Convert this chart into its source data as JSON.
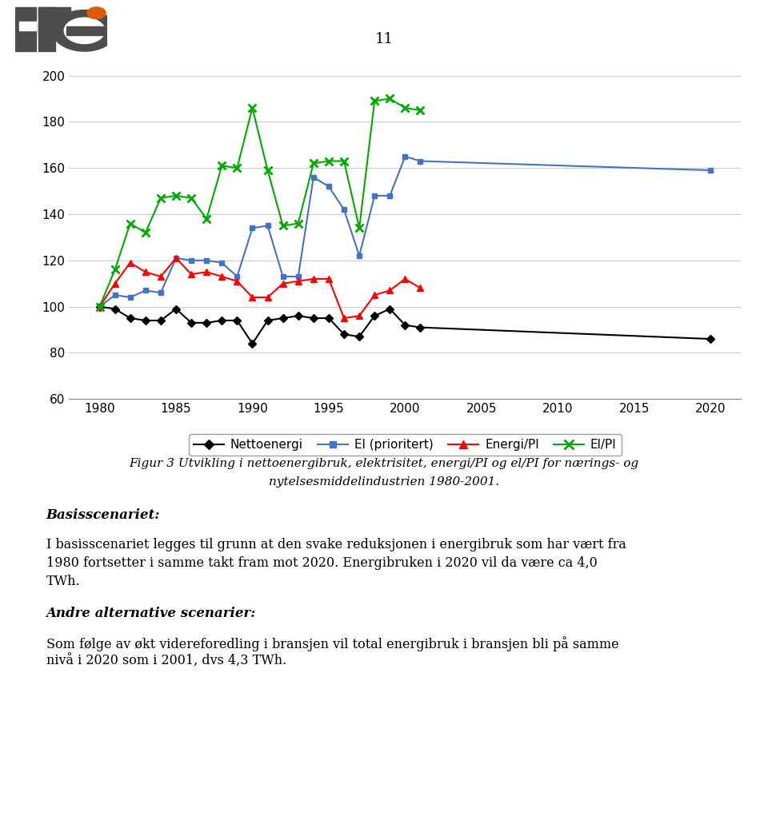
{
  "page_number": "11",
  "years_historical": [
    1980,
    1981,
    1982,
    1983,
    1984,
    1985,
    1986,
    1987,
    1988,
    1989,
    1990,
    1991,
    1992,
    1993,
    1994,
    1995,
    1996,
    1997,
    1998,
    1999,
    2000,
    2001
  ],
  "nettoenergi": [
    100,
    99,
    95,
    94,
    94,
    99,
    93,
    93,
    94,
    94,
    84,
    94,
    95,
    96,
    95,
    95,
    88,
    87,
    96,
    99,
    92,
    91
  ],
  "el_prioritert": [
    100,
    105,
    104,
    107,
    106,
    121,
    120,
    120,
    119,
    113,
    134,
    135,
    113,
    113,
    156,
    152,
    142,
    122,
    148,
    148,
    165,
    163
  ],
  "energi_pi": [
    100,
    110,
    119,
    115,
    113,
    121,
    114,
    115,
    113,
    111,
    104,
    104,
    110,
    111,
    112,
    112,
    95,
    96,
    105,
    107,
    112,
    108
  ],
  "el_pi": [
    100,
    116,
    136,
    132,
    147,
    148,
    147,
    138,
    161,
    160,
    186,
    159,
    135,
    136,
    162,
    163,
    163,
    134,
    189,
    190,
    186,
    185
  ],
  "years_projected_el": [
    2001,
    2020
  ],
  "el_prioritert_projected": [
    163,
    159
  ],
  "years_projected_netto": [
    2001,
    2020
  ],
  "nettoenergi_projected": [
    91,
    86
  ],
  "ylim": [
    60,
    200
  ],
  "yticks": [
    60,
    80,
    100,
    120,
    140,
    160,
    180,
    200
  ],
  "xticks": [
    1980,
    1985,
    1990,
    1995,
    2000,
    2005,
    2010,
    2015,
    2020
  ],
  "color_netto": "#000000",
  "color_el": "#4472C4",
  "color_energi": "#FF0000",
  "color_elpi": "#00AA00",
  "legend_labels": [
    "Nettoenergi",
    "El (prioritert)",
    "Energi/PI",
    "El/PI"
  ],
  "figure_caption_line1": "Figur 3 Utvikling i nettoenergibruk, elektrisitet, energi/PI og el/PI for nærings- og",
  "figure_caption_line2": "nytelsesmiddelindustrien 1980-2001.",
  "text_basisscenariet_bold": "Basisscenariet:",
  "text_basisscenariet_body_line1": "I basisscenariet legges til grunn at den svake reduksjonen i energibruk som har vært fra",
  "text_basisscenariet_body_line2": "1980 fortsetter i samme takt fram mot 2020. Energibruken i 2020 vil da være ca 4,0",
  "text_basisscenariet_body_line3": "TWh.",
  "text_andre_bold": "Andre alternative scenarier:",
  "text_andre_body_line1": "Som følge av økt videreforedling i bransjen vil total energibruk i bransjen bli på samme",
  "text_andre_body_line2": "nivå i 2020 som i 2001, dvs 4,3 TWh."
}
